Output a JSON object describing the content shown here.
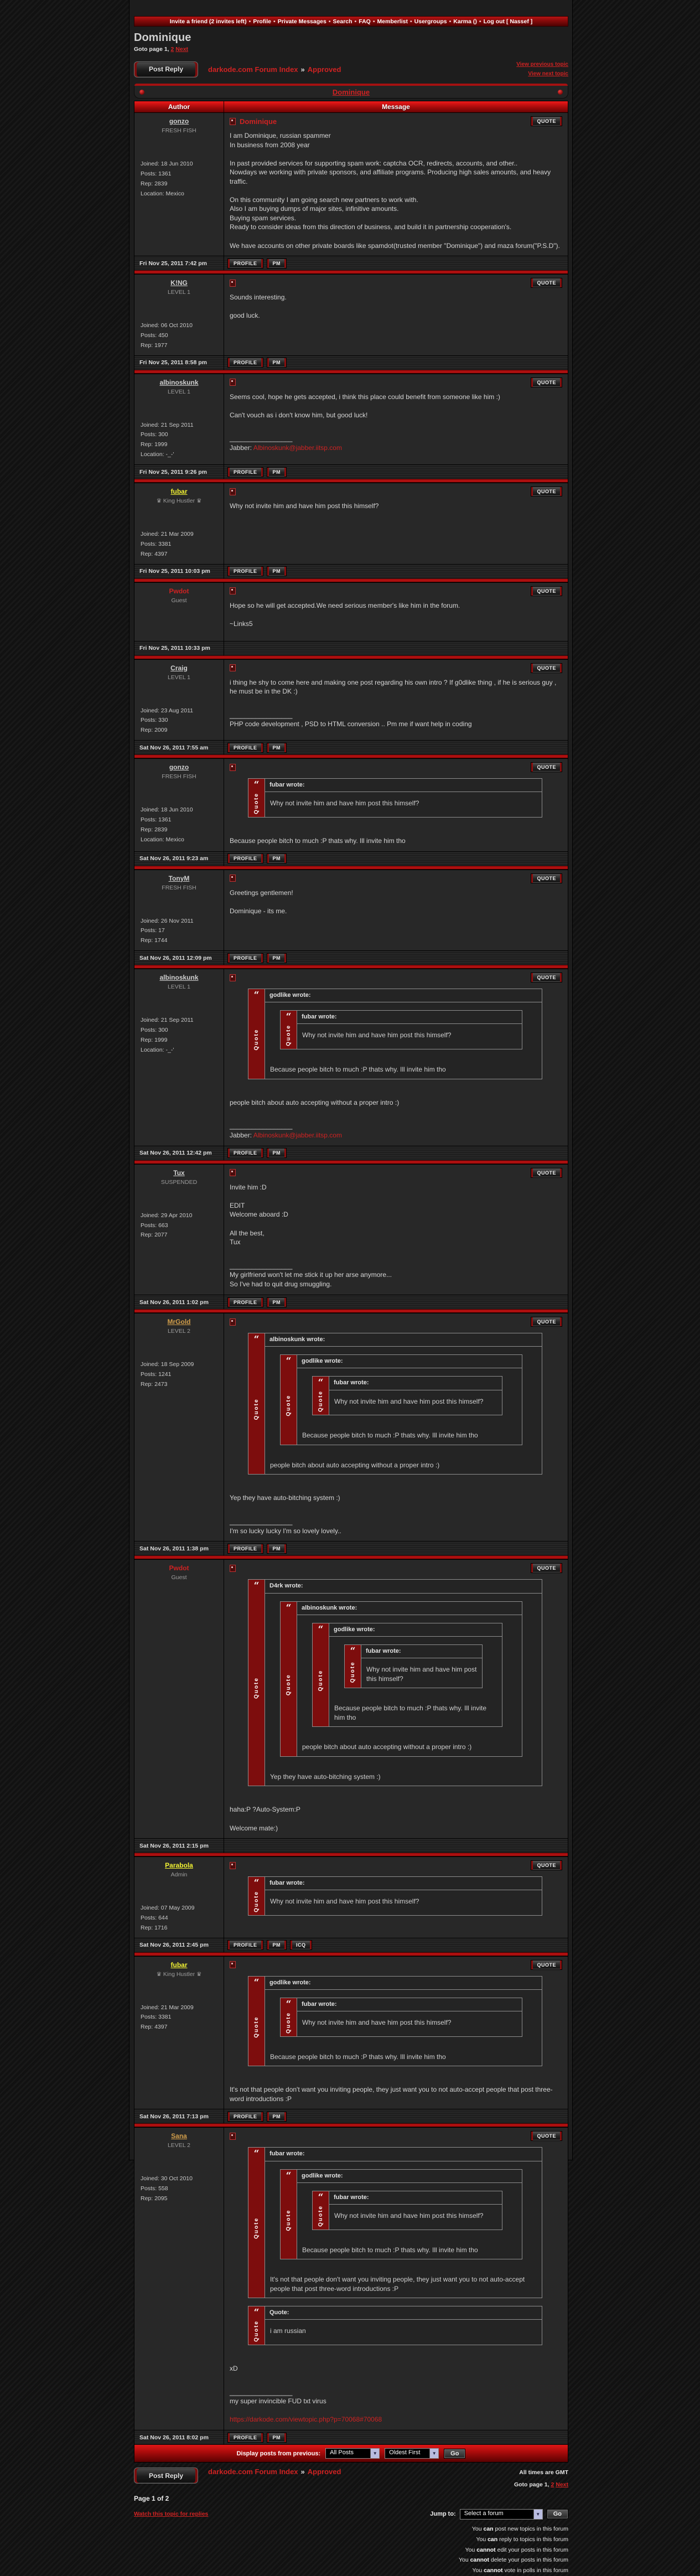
{
  "nav": {
    "separator": " • ",
    "items": [
      "Invite a friend (2 invites left)",
      "Profile",
      "Private Messages",
      "Search",
      "FAQ",
      "Memberlist",
      "Usergroups",
      "Karma ()",
      "Log out [ Nassef ]"
    ]
  },
  "header": {
    "title": "Dominique",
    "goto_prefix": "Goto page 1,",
    "page2": "2",
    "next": "Next"
  },
  "toolbar": {
    "post_reply": "Post Reply",
    "crumb_root": "darkode.com Forum Index",
    "crumb_sep": "»",
    "crumb_current": "Approved",
    "view_prev": "View previous topic",
    "view_next": "View next topic"
  },
  "topic_bar": {
    "title": "Dominique"
  },
  "table": {
    "author_header": "Author",
    "message_header": "Message"
  },
  "labels": {
    "quote_btn": "QUOTE",
    "quote_strip": "Quote",
    "quote_mark": "“",
    "sig_sep": "_________________",
    "arrow": "▼"
  },
  "posts": [
    {
      "author": {
        "name": "gonzo",
        "style": "member",
        "rank": "FRESH FISH",
        "stats": [
          "Joined: 18 Jun 2010",
          "Posts: 1361",
          "Rep: 2839",
          "Location: Mexico"
        ]
      },
      "subject": "Dominique",
      "body": [
        {
          "type": "text",
          "text": "I am Dominique, russian spammer\nIn business from 2008 year\n\nIn past provided services for supporting spam work: captcha OCR, redirects, accounts, and other..\nNowdays we working with private sponsors, and affiliate programs. Producing high sales amounts, and heavy traffic.\n\nOn this community I am going search new partners to work with.\nAlso I am buying dumps of major sites, infinitive amounts.\nBuying spam services.\nReady to consider ideas from this direction of business, and build it in partnership cooperation's.\n\nWe have accounts on other private boards like spamdot(trusted member \"Dominique\") and maza forum(\"P.S.D\")."
        }
      ],
      "date": "Fri Nov 25, 2011 7:42 pm",
      "buttons": [
        "PROFILE",
        "PM"
      ]
    },
    {
      "author": {
        "name": "K!NG",
        "style": "member",
        "rank": "LEVEL 1",
        "stats": [
          "Joined: 06 Oct 2010",
          "Posts: 450",
          "Rep: 1977"
        ]
      },
      "subject": "",
      "body": [
        {
          "type": "text",
          "text": "Sounds interesting.\n\ngood luck."
        }
      ],
      "date": "Fri Nov 25, 2011 8:58 pm",
      "buttons": [
        "PROFILE",
        "PM"
      ]
    },
    {
      "author": {
        "name": "albinoskunk",
        "style": "member",
        "rank": "LEVEL 1",
        "stats": [
          "Joined: 21 Sep 2011",
          "Posts: 300",
          "Rep: 1999",
          "Location: -_-'"
        ]
      },
      "subject": "",
      "body": [
        {
          "type": "text",
          "text": "Seems cool, hope he gets accepted, i think this place could benefit from someone like him :)\n\nCan't vouch as i don't know him, but good luck!"
        },
        {
          "type": "sig",
          "lines": [
            [
              {
                "t": "Jabber: "
              },
              {
                "t": "Albinoskunk@jabber.iitsp.com",
                "link": true
              }
            ]
          ]
        }
      ],
      "date": "Fri Nov 25, 2011 9:26 pm",
      "buttons": [
        "PROFILE",
        "PM"
      ]
    },
    {
      "author": {
        "name": "fubar",
        "style": "vip",
        "rank": "♛ King Hustler ♛",
        "stats": [
          "Joined: 21 Mar 2009",
          "Posts: 3381",
          "Rep: 4397"
        ]
      },
      "subject": "",
      "body": [
        {
          "type": "text",
          "text": "Why not invite him and have him post this himself?"
        }
      ],
      "date": "Fri Nov 25, 2011 10:03 pm",
      "buttons": [
        "PROFILE",
        "PM"
      ]
    },
    {
      "author": {
        "name": "Pwdot",
        "style": "guest",
        "rank": "Guest",
        "stats": []
      },
      "subject": "",
      "body": [
        {
          "type": "text",
          "text": "Hope so he will get accepted.We need serious member's like him in the forum.\n\n~Links5"
        }
      ],
      "date": "Fri Nov 25, 2011 10:33 pm",
      "buttons": []
    },
    {
      "author": {
        "name": "Craig",
        "style": "member",
        "rank": "LEVEL 1",
        "stats": [
          "Joined: 23 Aug 2011",
          "Posts: 330",
          "Rep: 2009"
        ]
      },
      "subject": "",
      "body": [
        {
          "type": "text",
          "text": "i thing he shy to come here and making one post regarding his own intro ? If g0dlike thing , if he is serious guy , he must be in the DK :)"
        },
        {
          "type": "sig",
          "lines": [
            [
              {
                "t": "PHP code development , PSD to HTML conversion .. Pm me if want help in coding"
              }
            ]
          ]
        }
      ],
      "date": "Sat Nov 26, 2011 7:55 am",
      "buttons": [
        "PROFILE",
        "PM"
      ]
    },
    {
      "author": {
        "name": "gonzo",
        "style": "member",
        "rank": "FRESH FISH",
        "stats": [
          "Joined: 18 Jun 2010",
          "Posts: 1361",
          "Rep: 2839",
          "Location: Mexico"
        ]
      },
      "subject": "",
      "body": [
        {
          "type": "quote",
          "title": "fubar wrote:",
          "items": [
            {
              "type": "text",
              "text": "Why not invite him and have him post this himself?"
            }
          ]
        },
        {
          "type": "text",
          "text": "Because people bitch to much :P thats why. Ill invite him tho"
        }
      ],
      "date": "Sat Nov 26, 2011 9:23 am",
      "buttons": [
        "PROFILE",
        "PM"
      ]
    },
    {
      "author": {
        "name": "TonyM",
        "style": "member",
        "rank": "FRESH FISH",
        "stats": [
          "Joined: 26 Nov 2011",
          "Posts: 17",
          "Rep: 1744"
        ]
      },
      "subject": "",
      "body": [
        {
          "type": "text",
          "text": "Greetings gentlemen!\n\nDominique - its me."
        }
      ],
      "date": "Sat Nov 26, 2011 12:09 pm",
      "buttons": [
        "PROFILE",
        "PM"
      ]
    },
    {
      "author": {
        "name": "albinoskunk",
        "style": "member",
        "rank": "LEVEL 1",
        "stats": [
          "Joined: 21 Sep 2011",
          "Posts: 300",
          "Rep: 1999",
          "Location: -_-'"
        ]
      },
      "subject": "",
      "body": [
        {
          "type": "quote",
          "title": "godlike wrote:",
          "items": [
            {
              "type": "quote",
              "title": "fubar wrote:",
              "items": [
                {
                  "type": "text",
                  "text": "Why not invite him and have him post this himself?"
                }
              ]
            },
            {
              "type": "text",
              "text": "Because people bitch to much :P thats why. Ill invite him tho"
            }
          ]
        },
        {
          "type": "text",
          "text": "people bitch about auto accepting without a proper intro :)"
        },
        {
          "type": "sig",
          "lines": [
            [
              {
                "t": "Jabber: "
              },
              {
                "t": "Albinoskunk@jabber.iitsp.com",
                "link": true
              }
            ]
          ]
        }
      ],
      "date": "Sat Nov 26, 2011 12:42 pm",
      "buttons": [
        "PROFILE",
        "PM"
      ]
    },
    {
      "author": {
        "name": "Tux",
        "style": "member",
        "rank": "SUSPENDED",
        "stats": [
          "Joined: 29 Apr 2010",
          "Posts: 663",
          "Rep: 2077"
        ]
      },
      "subject": "",
      "body": [
        {
          "type": "text",
          "text": "Invite him :D\n\nEDIT\nWelcome aboard :D\n\nAll the best,\nTux"
        },
        {
          "type": "sig",
          "lines": [
            [
              {
                "t": "My girlfriend won't let me stick it up her arse anymore..."
              }
            ],
            [
              {
                "t": "So I've had to quit drug smuggling."
              }
            ]
          ]
        }
      ],
      "date": "Sat Nov 26, 2011 1:02 pm",
      "buttons": [
        "PROFILE",
        "PM"
      ]
    },
    {
      "author": {
        "name": "MrGold",
        "style": "gold",
        "rank": "LEVEL 2",
        "stats": [
          "Joined: 18 Sep 2009",
          "Posts: 1241",
          "Rep: 2473"
        ]
      },
      "subject": "",
      "body": [
        {
          "type": "quote",
          "title": "albinoskunk wrote:",
          "items": [
            {
              "type": "quote",
              "title": "godlike wrote:",
              "items": [
                {
                  "type": "quote",
                  "title": "fubar wrote:",
                  "items": [
                    {
                      "type": "text",
                      "text": "Why not invite him and have him post this himself?"
                    }
                  ]
                },
                {
                  "type": "text",
                  "text": "Because people bitch to much :P thats why. Ill invite him tho"
                }
              ]
            },
            {
              "type": "text",
              "text": "people bitch about auto accepting without a proper intro :)"
            }
          ]
        },
        {
          "type": "text",
          "text": "Yep they have auto-bitching system :)"
        },
        {
          "type": "sig",
          "lines": [
            [
              {
                "t": "I'm so lucky lucky I'm so lovely lovely.."
              }
            ]
          ]
        }
      ],
      "date": "Sat Nov 26, 2011 1:38 pm",
      "buttons": [
        "PROFILE",
        "PM"
      ]
    },
    {
      "author": {
        "name": "Pwdot",
        "style": "guest",
        "rank": "Guest",
        "stats": []
      },
      "subject": "",
      "body": [
        {
          "type": "quote",
          "title": "D4rk wrote:",
          "items": [
            {
              "type": "quote",
              "title": "albinoskunk wrote:",
              "items": [
                {
                  "type": "quote",
                  "title": "godlike wrote:",
                  "items": [
                    {
                      "type": "quote",
                      "title": "fubar wrote:",
                      "items": [
                        {
                          "type": "text",
                          "text": "Why not invite him and have him post this himself?"
                        }
                      ]
                    },
                    {
                      "type": "text",
                      "text": "Because people bitch to much :P thats why. Ill invite him tho"
                    }
                  ]
                },
                {
                  "type": "text",
                  "text": "people bitch about auto accepting without a proper intro :)"
                }
              ]
            },
            {
              "type": "text",
              "text": "Yep they have auto-bitching system :)"
            }
          ]
        },
        {
          "type": "text",
          "text": "haha:P ?Auto-System:P\n\nWelcome mate:)"
        }
      ],
      "date": "Sat Nov 26, 2011 2:15 pm",
      "buttons": []
    },
    {
      "author": {
        "name": "Parabola",
        "style": "vip",
        "rank": "Admin",
        "stats": [
          "Joined: 07 May 2009",
          "Posts: 644",
          "Rep: 1716"
        ]
      },
      "subject": "",
      "body": [
        {
          "type": "quote",
          "title": "fubar wrote:",
          "items": [
            {
              "type": "text",
              "text": "Why not invite him and have him post this himself?"
            }
          ]
        }
      ],
      "date": "Sat Nov 26, 2011 2:45 pm",
      "buttons": [
        "PROFILE",
        "PM",
        "ICQ"
      ]
    },
    {
      "author": {
        "name": "fubar",
        "style": "vip",
        "rank": "♛ King Hustler ♛",
        "stats": [
          "Joined: 21 Mar 2009",
          "Posts: 3381",
          "Rep: 4397"
        ]
      },
      "subject": "",
      "body": [
        {
          "type": "quote",
          "title": "godlike wrote:",
          "items": [
            {
              "type": "quote",
              "title": "fubar wrote:",
              "items": [
                {
                  "type": "text",
                  "text": "Why not invite him and have him post this himself?"
                }
              ]
            },
            {
              "type": "text",
              "text": "Because people bitch to much :P thats why. Ill invite him tho"
            }
          ]
        },
        {
          "type": "text",
          "text": "It's not that people don't want you inviting people, they just want you to not auto-accept people that post three-word introductions :P"
        }
      ],
      "date": "Sat Nov 26, 2011 7:13 pm",
      "buttons": [
        "PROFILE",
        "PM"
      ]
    },
    {
      "author": {
        "name": "Sana",
        "style": "gold",
        "rank": "LEVEL 2",
        "stats": [
          "Joined: 30 Oct 2010",
          "Posts: 558",
          "Rep: 2095"
        ]
      },
      "subject": "",
      "body": [
        {
          "type": "quote",
          "title": "fubar wrote:",
          "items": [
            {
              "type": "quote",
              "title": "godlike wrote:",
              "items": [
                {
                  "type": "quote",
                  "title": "fubar wrote:",
                  "items": [
                    {
                      "type": "text",
                      "text": "Why not invite him and have him post this himself?"
                    }
                  ]
                },
                {
                  "type": "text",
                  "text": "Because people bitch to much :P thats why. Ill invite him tho"
                }
              ]
            },
            {
              "type": "text",
              "text": "It's not that people don't want you inviting people, they just want you to not auto-accept people that post three-word introductions :P"
            }
          ]
        },
        {
          "type": "quote",
          "title": "Quote:",
          "items": [
            {
              "type": "text",
              "text": "i am russian"
            }
          ]
        },
        {
          "type": "text",
          "text": "xD"
        },
        {
          "type": "sig",
          "lines": [
            [
              {
                "t": "my super invincible FUD txt virus"
              }
            ],
            [],
            [
              {
                "t": "https://darkode.com/viewtopic.php?p=70068#70068",
                "link": true
              }
            ]
          ]
        }
      ],
      "date": "Sat Nov 26, 2011 8:02 pm",
      "buttons": [
        "PROFILE",
        "PM"
      ]
    }
  ],
  "display_bar": {
    "label": "Display posts from previous:",
    "select1": "All Posts",
    "select2": "Oldest First",
    "go": "Go"
  },
  "bottom": {
    "post_reply": "Post Reply",
    "crumb_root": "darkode.com Forum Index",
    "crumb_sep": "»",
    "crumb_current": "Approved",
    "all_times": "All times are GMT",
    "goto_prefix": "Goto page 1,",
    "page2": "2",
    "next": "Next",
    "page_info": "Page 1 of 2",
    "watch": "Watch this topic for replies",
    "jump_label": "Jump to:",
    "jump_select": "Select a forum",
    "jump_go": "Go",
    "permissions": [
      {
        "pre": "You ",
        "word": "can",
        "post": " post new topics in this forum"
      },
      {
        "pre": "You ",
        "word": "can",
        "post": " reply to topics in this forum"
      },
      {
        "pre": "You ",
        "word": "cannot",
        "post": " edit your posts in this forum"
      },
      {
        "pre": "You ",
        "word": "cannot",
        "post": " delete your posts in this forum"
      },
      {
        "pre": "You ",
        "word": "cannot",
        "post": " vote in polls in this forum"
      }
    ]
  },
  "colors": {
    "accent_red": "#b11212",
    "link_red": "#cf2222",
    "vip_yellow": "#f3f333",
    "gold": "#d29e4a",
    "quote_strip_red": "#7d0d0d"
  }
}
